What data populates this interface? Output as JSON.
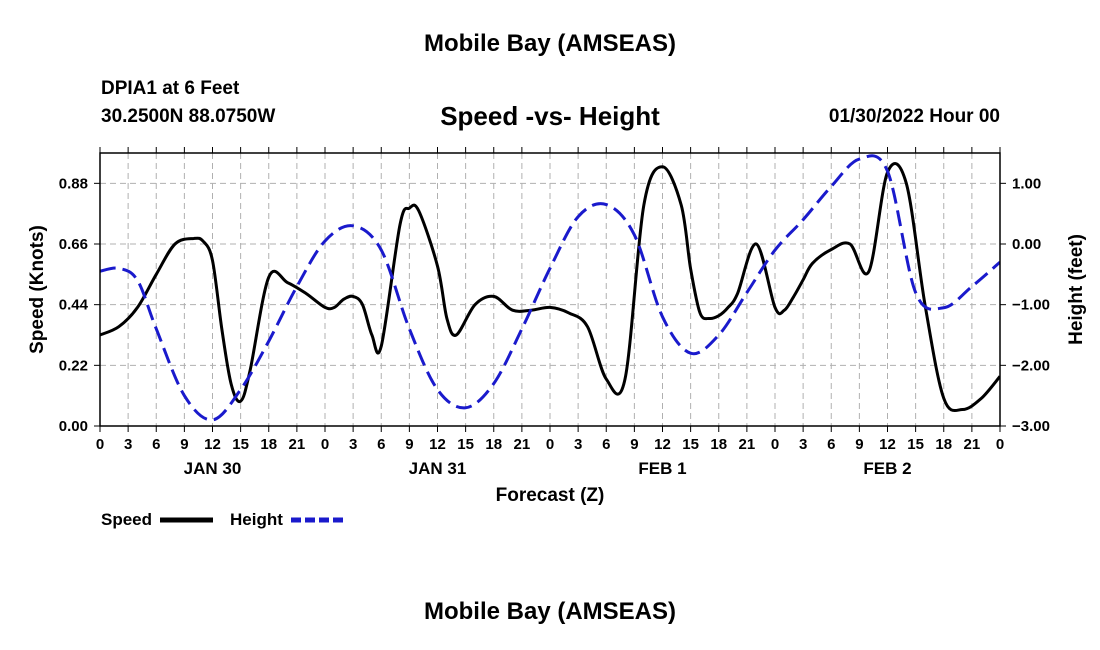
{
  "header": {
    "title": "Mobile Bay (AMSEAS)",
    "station": "DPIA1 at 6 Feet",
    "coords": "30.2500N  88.0750W",
    "subtitle": "Speed -vs- Height",
    "datetime": "01/30/2022 Hour 00"
  },
  "footer": {
    "title": "Mobile Bay (AMSEAS)"
  },
  "chart_data": {
    "type": "line",
    "title": "Speed -vs- Height",
    "xlabel": "Forecast (Z)",
    "ylabel_left": "Speed (Knots)",
    "ylabel_right": "Height (feet)",
    "x_range_hours": [
      -12,
      84
    ],
    "x_ticks": [
      -12,
      -9,
      -6,
      -3,
      0,
      3,
      6,
      9,
      12,
      15,
      18,
      21,
      24,
      27,
      30,
      33,
      36,
      39,
      42,
      45,
      48,
      51,
      54,
      57,
      60,
      63,
      66,
      69,
      72,
      75,
      78,
      81,
      84
    ],
    "x_tick_labels": [
      "0",
      "3",
      "6",
      "9",
      "12",
      "15",
      "18",
      "21",
      "0",
      "3",
      "6",
      "9",
      "12",
      "15",
      "18",
      "21",
      "0",
      "3",
      "6",
      "9",
      "12",
      "15",
      "18",
      "21",
      "0",
      "3",
      "6",
      "9",
      "12",
      "15",
      "18",
      "21",
      "0"
    ],
    "date_labels": [
      {
        "hour": 0,
        "text": "JAN 30"
      },
      {
        "hour": 24,
        "text": "JAN 31"
      },
      {
        "hour": 48,
        "text": "FEB 1"
      },
      {
        "hour": 72,
        "text": "FEB 2"
      }
    ],
    "y_left": {
      "range": [
        0,
        0.99
      ],
      "ticks": [
        0.0,
        0.22,
        0.44,
        0.66,
        0.88
      ],
      "tick_labels": [
        "0.00",
        "0.22",
        "0.44",
        "0.66",
        "0.88"
      ]
    },
    "y_right": {
      "range": [
        -3.0,
        1.5
      ],
      "ticks": [
        -3,
        -2,
        -1,
        0,
        1
      ],
      "tick_labels": [
        "−3.00",
        "−2.00",
        "−1.00",
        "0.00",
        "1.00"
      ]
    },
    "grid": true,
    "legend": "bottom-left",
    "series": [
      {
        "name": "Speed",
        "axis": "left",
        "color": "#000000",
        "style": "solid",
        "x": [
          -12,
          -10,
          -8,
          -6,
          -4,
          -2,
          -1,
          0,
          1,
          2,
          3,
          4,
          6,
          8,
          10,
          12,
          13,
          14,
          15,
          16,
          17,
          18,
          20,
          21,
          22,
          24,
          25,
          26,
          28,
          30,
          32,
          34,
          36,
          38,
          40,
          42,
          44,
          46,
          48,
          50,
          51,
          52,
          53,
          54,
          55,
          56,
          58,
          60,
          61,
          62,
          63,
          64,
          66,
          68,
          70,
          72,
          74,
          76,
          78,
          80,
          82,
          84
        ],
        "y": [
          0.33,
          0.36,
          0.43,
          0.55,
          0.66,
          0.68,
          0.67,
          0.6,
          0.35,
          0.15,
          0.09,
          0.2,
          0.54,
          0.52,
          0.48,
          0.43,
          0.43,
          0.46,
          0.47,
          0.44,
          0.33,
          0.29,
          0.73,
          0.79,
          0.78,
          0.58,
          0.39,
          0.33,
          0.44,
          0.47,
          0.42,
          0.42,
          0.43,
          0.41,
          0.36,
          0.17,
          0.17,
          0.8,
          0.94,
          0.8,
          0.57,
          0.41,
          0.39,
          0.4,
          0.43,
          0.48,
          0.66,
          0.43,
          0.42,
          0.47,
          0.53,
          0.59,
          0.64,
          0.66,
          0.56,
          0.92,
          0.88,
          0.44,
          0.1,
          0.06,
          0.1,
          0.18
        ]
      },
      {
        "name": "Height",
        "axis": "right",
        "color": "#1a1acc",
        "style": "dashed",
        "x": [
          -12,
          -10,
          -8,
          -6,
          -3,
          0,
          3,
          6,
          9,
          12,
          15,
          18,
          21,
          24,
          27,
          30,
          33,
          36,
          39,
          42,
          45,
          48,
          51,
          54,
          57,
          60,
          63,
          66,
          69,
          72,
          75,
          78,
          81,
          84
        ],
        "y": [
          -0.45,
          -0.4,
          -0.6,
          -1.4,
          -2.5,
          -2.9,
          -2.4,
          -1.6,
          -0.7,
          0.05,
          0.3,
          -0.1,
          -1.4,
          -2.4,
          -2.7,
          -2.3,
          -1.4,
          -0.4,
          0.45,
          0.65,
          0.15,
          -1.2,
          -1.8,
          -1.5,
          -0.8,
          -0.1,
          0.4,
          0.95,
          1.4,
          1.2,
          -0.8,
          -1.05,
          -0.7,
          -0.3
        ]
      }
    ]
  }
}
